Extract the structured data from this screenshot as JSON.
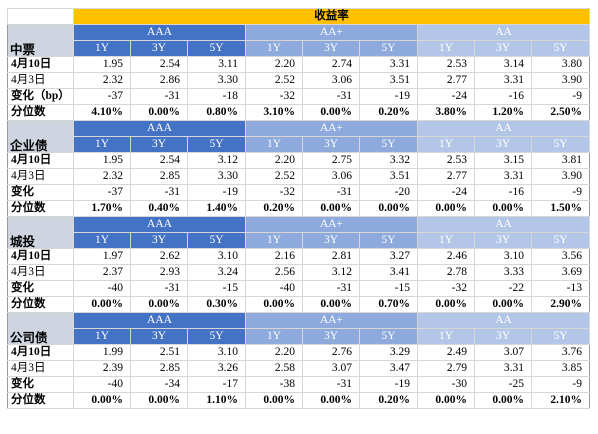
{
  "title": "收益率",
  "tiers": [
    {
      "grade": "AAA",
      "tenors": [
        "1Y",
        "3Y",
        "5Y"
      ]
    },
    {
      "grade": "AA+",
      "tenors": [
        "1Y",
        "3Y",
        "5Y"
      ]
    },
    {
      "grade": "AA",
      "tenors": [
        "1Y",
        "3Y",
        "5Y"
      ]
    }
  ],
  "colors": {
    "header_title": "#ffc000",
    "aaa": "#4472c4",
    "aa_plus": "#8ea9db",
    "aa": "#b4c6e7",
    "section_label": "#cfd5e0"
  },
  "sections": [
    {
      "name": "中票",
      "rows": [
        {
          "label": "4月10日",
          "values": [
            "1.95",
            "2.54",
            "3.11",
            "2.20",
            "2.74",
            "3.31",
            "2.53",
            "3.14",
            "3.80"
          ]
        },
        {
          "label": "4月3日",
          "values": [
            "2.32",
            "2.86",
            "3.30",
            "2.52",
            "3.06",
            "3.51",
            "2.77",
            "3.31",
            "3.90"
          ]
        },
        {
          "label": "变化（bp）",
          "values": [
            "-37",
            "-31",
            "-18",
            "-32",
            "-31",
            "-19",
            "-24",
            "-16",
            "-9"
          ]
        },
        {
          "label": "分位数",
          "values": [
            "4.10%",
            "0.00%",
            "0.80%",
            "3.10%",
            "0.00%",
            "0.20%",
            "3.80%",
            "1.20%",
            "2.50%"
          ]
        }
      ]
    },
    {
      "name": "企业债",
      "rows": [
        {
          "label": "4月10日",
          "values": [
            "1.95",
            "2.54",
            "3.12",
            "2.20",
            "2.75",
            "3.32",
            "2.53",
            "3.15",
            "3.81"
          ]
        },
        {
          "label": "4月3日",
          "values": [
            "2.32",
            "2.85",
            "3.30",
            "2.52",
            "3.06",
            "3.51",
            "2.77",
            "3.31",
            "3.90"
          ]
        },
        {
          "label": "变化",
          "values": [
            "-37",
            "-31",
            "-19",
            "-32",
            "-31",
            "-20",
            "-24",
            "-16",
            "-9"
          ]
        },
        {
          "label": "分位数",
          "values": [
            "1.70%",
            "0.40%",
            "1.40%",
            "0.20%",
            "0.00%",
            "0.00%",
            "0.00%",
            "0.00%",
            "1.50%"
          ]
        }
      ]
    },
    {
      "name": "城投",
      "rows": [
        {
          "label": "4月10日",
          "values": [
            "1.97",
            "2.62",
            "3.10",
            "2.16",
            "2.81",
            "3.27",
            "2.46",
            "3.10",
            "3.56"
          ]
        },
        {
          "label": "4月3日",
          "values": [
            "2.37",
            "2.93",
            "3.24",
            "2.56",
            "3.12",
            "3.41",
            "2.78",
            "3.33",
            "3.69"
          ]
        },
        {
          "label": "变化",
          "values": [
            "-40",
            "-31",
            "-15",
            "-40",
            "-31",
            "-15",
            "-32",
            "-22",
            "-13"
          ]
        },
        {
          "label": "分位数",
          "values": [
            "0.00%",
            "0.00%",
            "0.30%",
            "0.00%",
            "0.00%",
            "0.70%",
            "0.00%",
            "0.00%",
            "2.90%"
          ]
        }
      ]
    },
    {
      "name": "公司债",
      "rows": [
        {
          "label": "4月10日",
          "values": [
            "1.99",
            "2.51",
            "3.10",
            "2.20",
            "2.76",
            "3.29",
            "2.49",
            "3.07",
            "3.76"
          ]
        },
        {
          "label": "4月3日",
          "values": [
            "2.39",
            "2.85",
            "3.26",
            "2.58",
            "3.07",
            "3.47",
            "2.79",
            "3.31",
            "3.85"
          ]
        },
        {
          "label": "变化",
          "values": [
            "-40",
            "-34",
            "-17",
            "-38",
            "-31",
            "-19",
            "-30",
            "-25",
            "-9"
          ]
        },
        {
          "label": "分位数",
          "values": [
            "0.00%",
            "0.00%",
            "1.10%",
            "0.00%",
            "0.00%",
            "0.20%",
            "0.00%",
            "0.00%",
            "2.10%"
          ]
        }
      ]
    }
  ]
}
